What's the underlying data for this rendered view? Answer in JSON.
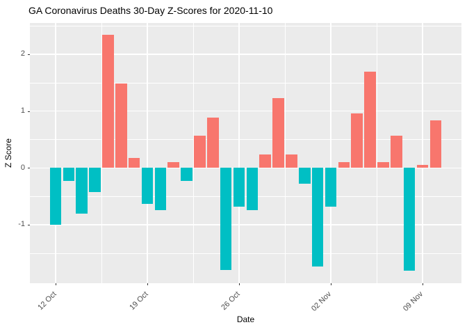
{
  "window": {
    "title": "GA Coronavirus Deaths 30-Day Z-Scores for 2020-11-10"
  },
  "chart_data": {
    "type": "bar",
    "title": "GA Coronavirus Deaths 30-Day Z-Scores for 2020-11-10",
    "xlabel": "Date",
    "ylabel": "Z Score",
    "categories": [
      "12 Oct",
      "13 Oct",
      "14 Oct",
      "15 Oct",
      "16 Oct",
      "17 Oct",
      "18 Oct",
      "19 Oct",
      "20 Oct",
      "21 Oct",
      "22 Oct",
      "23 Oct",
      "24 Oct",
      "25 Oct",
      "26 Oct",
      "27 Oct",
      "28 Oct",
      "29 Oct",
      "30 Oct",
      "31 Oct",
      "01 Nov",
      "02 Nov",
      "03 Nov",
      "04 Nov",
      "05 Nov",
      "06 Nov",
      "07 Nov",
      "08 Nov",
      "09 Nov",
      "10 Nov"
    ],
    "values": [
      -1.0,
      -0.23,
      -0.81,
      -0.42,
      2.34,
      1.49,
      0.17,
      -0.63,
      -0.75,
      0.1,
      -0.23,
      0.57,
      0.89,
      -1.8,
      -0.68,
      -0.75,
      0.23,
      1.23,
      0.23,
      -0.28,
      -1.74,
      -0.68,
      0.1,
      0.96,
      1.69,
      0.1,
      0.57,
      -1.81,
      0.05,
      0.83
    ],
    "x_tick_labels": [
      "12 Oct",
      "19 Oct",
      "26 Oct",
      "02 Nov",
      "09 Nov"
    ],
    "x_tick_indices": [
      0,
      7,
      14,
      21,
      28
    ],
    "x_minor_indices": [
      3.5,
      10.5,
      17.5,
      24.5
    ],
    "y_tick_labels": [
      "-1",
      "0",
      "1",
      "2"
    ],
    "y_tick_values": [
      -1,
      0,
      1,
      2
    ],
    "y_minor_ticks": [
      -1.5,
      -0.5,
      0.5,
      1.5,
      2.5
    ],
    "ylim": [
      -2.03,
      2.55
    ],
    "grid": true,
    "legend": "none",
    "colors": {
      "positive": "#F8766D",
      "negative": "#00BFC4",
      "panel_bg": "#EBEBEB",
      "grid": "#FFFFFF",
      "tick_text": "#4D4D4D",
      "title_text": "#000000"
    }
  }
}
